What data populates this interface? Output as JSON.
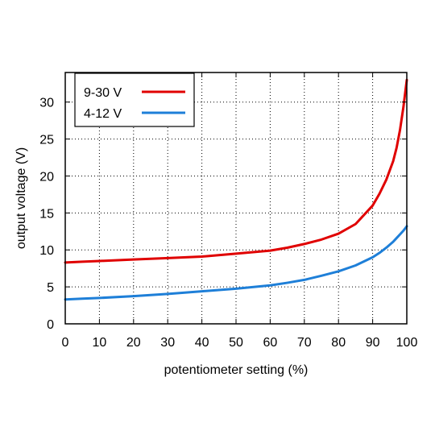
{
  "chart_data": {
    "type": "line",
    "title": "",
    "xlabel": "potentiometer setting (%)",
    "ylabel": "output voltage (V)",
    "xlim": [
      0,
      100
    ],
    "ylim": [
      0,
      34
    ],
    "xticks": [
      0,
      10,
      20,
      30,
      40,
      50,
      60,
      70,
      80,
      90,
      100
    ],
    "yticks": [
      0,
      5,
      10,
      15,
      20,
      25,
      30
    ],
    "grid": true,
    "legend": {
      "position": "top-left",
      "entries": [
        "9-30 V",
        "4-12 V"
      ]
    },
    "series": [
      {
        "name": "9-30 V",
        "color": "#e00000",
        "x": [
          0,
          5,
          10,
          20,
          30,
          40,
          50,
          60,
          65,
          70,
          75,
          80,
          85,
          90,
          92,
          94,
          96,
          97,
          98,
          99,
          100
        ],
        "y": [
          8.3,
          8.4,
          8.5,
          8.7,
          8.9,
          9.1,
          9.5,
          9.9,
          10.3,
          10.8,
          11.4,
          12.2,
          13.5,
          16.0,
          17.6,
          19.5,
          22.0,
          23.8,
          26.2,
          29.3,
          33.0
        ]
      },
      {
        "name": "4-12 V",
        "color": "#1e7fd8",
        "x": [
          0,
          5,
          10,
          20,
          30,
          40,
          50,
          60,
          65,
          70,
          75,
          80,
          85,
          90,
          92,
          94,
          96,
          97,
          98,
          99,
          100
        ],
        "y": [
          3.3,
          3.4,
          3.5,
          3.75,
          4.05,
          4.4,
          4.75,
          5.2,
          5.55,
          5.95,
          6.5,
          7.1,
          7.9,
          9.0,
          9.6,
          10.3,
          11.1,
          11.6,
          12.1,
          12.6,
          13.2
        ]
      }
    ]
  }
}
